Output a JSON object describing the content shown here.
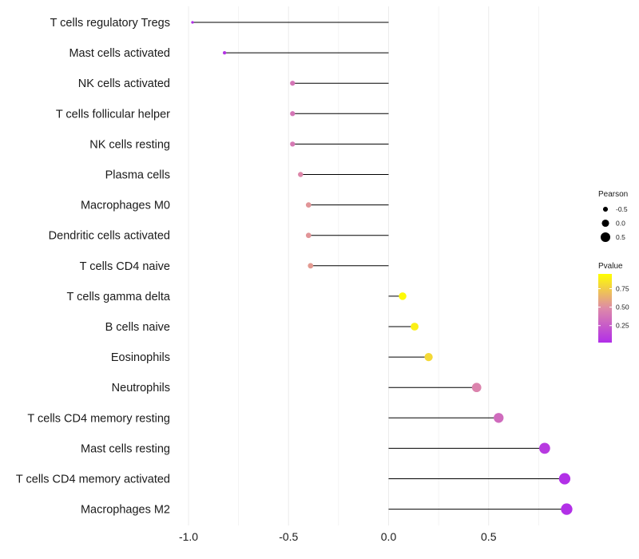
{
  "chart_data": {
    "type": "lollipop",
    "title": "",
    "xlabel": "",
    "ylabel": "",
    "xlim": [
      -1.0,
      0.9
    ],
    "x_ticks": [
      -1.0,
      -0.5,
      0.0,
      0.5
    ],
    "x_tick_labels": [
      "-1.0",
      "-0.5",
      "0.0",
      "0.5"
    ],
    "grid": true,
    "categories": [
      "T cells regulatory  Tregs",
      "Mast cells activated",
      "NK cells activated",
      "T cells follicular helper",
      "NK cells resting",
      "Plasma cells",
      "Macrophages M0",
      "Dendritic cells activated",
      "T cells CD4 naive",
      "T cells gamma delta",
      "B cells naive",
      "Eosinophils",
      "Neutrophils",
      "T cells CD4 memory resting",
      "Mast cells resting",
      "T cells CD4 memory activated",
      "Macrophages M2"
    ],
    "pearson": [
      -0.98,
      -0.82,
      -0.48,
      -0.48,
      -0.48,
      -0.44,
      -0.4,
      -0.4,
      -0.39,
      0.07,
      0.13,
      0.2,
      0.44,
      0.55,
      0.78,
      0.88,
      0.89
    ],
    "pvalue": [
      0.02,
      0.05,
      0.38,
      0.38,
      0.4,
      0.47,
      0.53,
      0.53,
      0.55,
      0.93,
      0.89,
      0.8,
      0.45,
      0.33,
      0.08,
      0.03,
      0.03
    ],
    "legend": {
      "size_title": "Pearson",
      "size_labels": [
        "-0.5",
        "0.0",
        "0.5"
      ],
      "size_values": [
        -0.5,
        0.0,
        0.5
      ],
      "color_title": "Pvalue",
      "color_labels": [
        "0.75",
        "0.50",
        "0.25"
      ],
      "color_values": [
        0.75,
        0.5,
        0.25
      ],
      "color_range": [
        0.02,
        0.95
      ],
      "placement": "right"
    },
    "colors": {
      "low": "#b12ee8",
      "mid": "#de8aa8",
      "high": "#ffff00",
      "segment": "#000000",
      "grid": "#ececec"
    }
  }
}
